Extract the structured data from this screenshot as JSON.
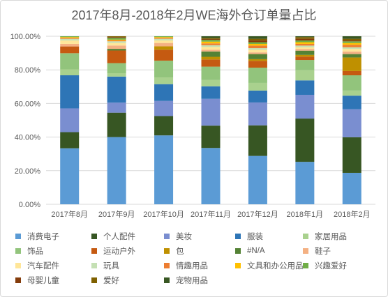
{
  "chart_data": {
    "type": "bar",
    "stacked": true,
    "percent": true,
    "title": "2017年8月-2018年2月WE海外仓订单量占比",
    "categories": [
      "2017年8月",
      "2017年9月",
      "2017年10月",
      "2017年11月",
      "2017年12月",
      "2018年1月",
      "2018年2月"
    ],
    "y_ticks": [
      "0.00%",
      "20.00%",
      "40.00%",
      "60.00%",
      "80.00%",
      "100.00%"
    ],
    "ylim": [
      0,
      100
    ],
    "grid": true,
    "legend_position": "bottom",
    "series": [
      {
        "name": "消费电子",
        "color": "#5b9bd5",
        "values": [
          33,
          40,
          41,
          31.5,
          28.5,
          25,
          18.5
        ]
      },
      {
        "name": "个人配件",
        "color": "#375623",
        "values": [
          9.5,
          14.5,
          11.5,
          12.5,
          18,
          25.5,
          21
        ]
      },
      {
        "name": "美妆",
        "color": "#7a8ed0",
        "values": [
          14,
          6,
          9,
          15,
          13.5,
          14,
          16.5
        ]
      },
      {
        "name": "服装",
        "color": "#2e75b6",
        "values": [
          19.5,
          15.5,
          10,
          7,
          7,
          8.5,
          8
        ]
      },
      {
        "name": "家居用品",
        "color": "#a9d18e",
        "values": [
          3.5,
          2,
          4,
          3.5,
          4.5,
          6,
          3
        ]
      },
      {
        "name": "饰品",
        "color": "#92c47c",
        "values": [
          9.5,
          6,
          10,
          7.5,
          9,
          6,
          9
        ]
      },
      {
        "name": "运动户外",
        "color": "#c55a11",
        "values": [
          4,
          7.5,
          6.5,
          4,
          4,
          2,
          2.5
        ]
      },
      {
        "name": "包",
        "color": "#bf9000",
        "values": [
          0,
          0,
          2,
          1.5,
          1,
          1,
          8
        ]
      },
      {
        "name": "#N/A",
        "color": "#548235",
        "values": [
          0,
          1,
          0,
          3,
          3,
          2.5,
          2
        ]
      },
      {
        "name": "鞋子",
        "color": "#f4b183",
        "values": [
          1.5,
          2,
          2,
          1,
          1,
          1,
          1.5
        ]
      },
      {
        "name": "汽车配件",
        "color": "#ffe699",
        "values": [
          2,
          1.5,
          1.5,
          1.5,
          1.5,
          1,
          1.5
        ]
      },
      {
        "name": "玩具",
        "color": "#c5e0b4",
        "values": [
          1,
          1,
          1,
          1,
          1,
          1,
          1
        ]
      },
      {
        "name": "情趣用品",
        "color": "#ed7d31",
        "values": [
          0.5,
          0.5,
          0.5,
          1,
          1.5,
          1,
          1.5
        ]
      },
      {
        "name": "文具和办公用品",
        "color": "#ffc000",
        "values": [
          0.5,
          0.5,
          0.5,
          1,
          1,
          1,
          1
        ]
      },
      {
        "name": "兴趣爱好",
        "color": "#70ad47",
        "values": [
          0.5,
          1,
          0.5,
          1,
          1,
          1,
          1
        ]
      },
      {
        "name": "母婴儿童",
        "color": "#843c0c",
        "values": [
          0,
          0.5,
          0,
          0.5,
          1,
          1,
          0.5
        ]
      },
      {
        "name": "爱好",
        "color": "#7f6000",
        "values": [
          0,
          0.5,
          0,
          0.5,
          1,
          1,
          1
        ]
      },
      {
        "name": "宠物用品",
        "color": "#385723",
        "values": [
          0,
          0,
          0,
          1,
          1.5,
          0.5,
          1.5
        ]
      }
    ]
  }
}
